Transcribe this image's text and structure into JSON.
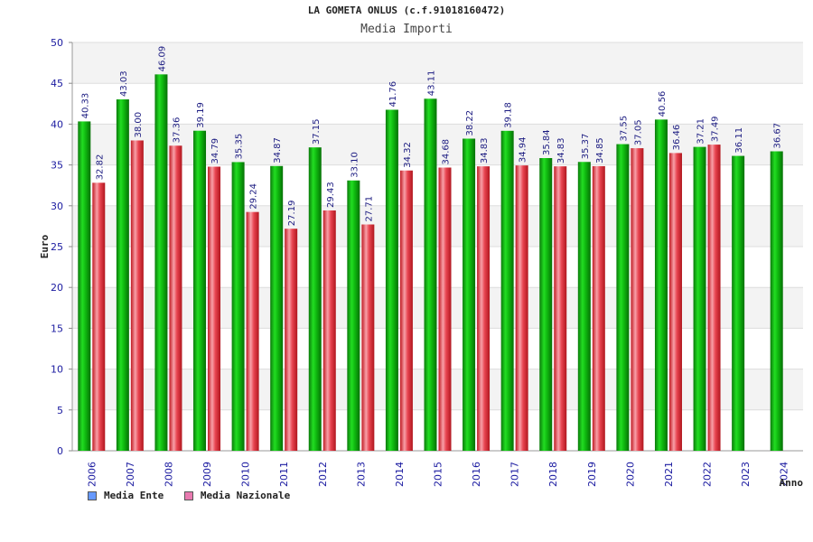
{
  "title": "LA GOMETA ONLUS (c.f.91018160472)",
  "chart_data": {
    "type": "bar",
    "title": "LA GOMETA ONLUS (c.f.91018160472)",
    "subtitle": "Media Importi",
    "xlabel": "Anno",
    "ylabel": "Euro",
    "ylim": [
      0,
      50
    ],
    "yticks": [
      0,
      5,
      10,
      15,
      20,
      25,
      30,
      35,
      40,
      45,
      50
    ],
    "grid": true,
    "categories": [
      "2006",
      "2007",
      "2008",
      "2009",
      "2010",
      "2011",
      "2012",
      "2013",
      "2014",
      "2015",
      "2016",
      "2017",
      "2018",
      "2019",
      "2020",
      "2021",
      "2022",
      "2023",
      "2024"
    ],
    "series": [
      {
        "name": "Media Ente",
        "color": "#00b000",
        "legend_color": "#6699ff",
        "values": [
          40.33,
          43.03,
          46.09,
          39.19,
          35.35,
          34.87,
          37.15,
          33.1,
          41.76,
          43.11,
          38.22,
          39.18,
          35.84,
          35.37,
          37.55,
          40.56,
          37.21,
          36.11,
          36.67
        ],
        "labels": [
          "40.33",
          "43.03",
          "46.09",
          "39.19",
          "35.35",
          "34.87",
          "37.15",
          "33.10",
          "41.76",
          "43.11",
          "38.22",
          "39.18",
          "35.84",
          "35.37",
          "37.55",
          "40.56",
          "37.21",
          "36.11",
          "36.67"
        ]
      },
      {
        "name": "Media Nazionale",
        "color": "#e8303a",
        "legend_color": "#e87ab0",
        "values": [
          32.82,
          38.0,
          37.36,
          34.79,
          29.24,
          27.19,
          29.43,
          27.71,
          34.32,
          34.68,
          34.83,
          34.94,
          34.83,
          34.85,
          37.05,
          36.46,
          37.49,
          null,
          null
        ],
        "labels": [
          "32.82",
          "38.00",
          "37.36",
          "34.79",
          "29.24",
          "27.19",
          "29.43",
          "27.71",
          "34.32",
          "34.68",
          "34.83",
          "34.94",
          "34.83",
          "34.85",
          "37.05",
          "36.46",
          "37.49",
          null,
          null
        ]
      }
    ],
    "legend_position": "bottom-left"
  }
}
